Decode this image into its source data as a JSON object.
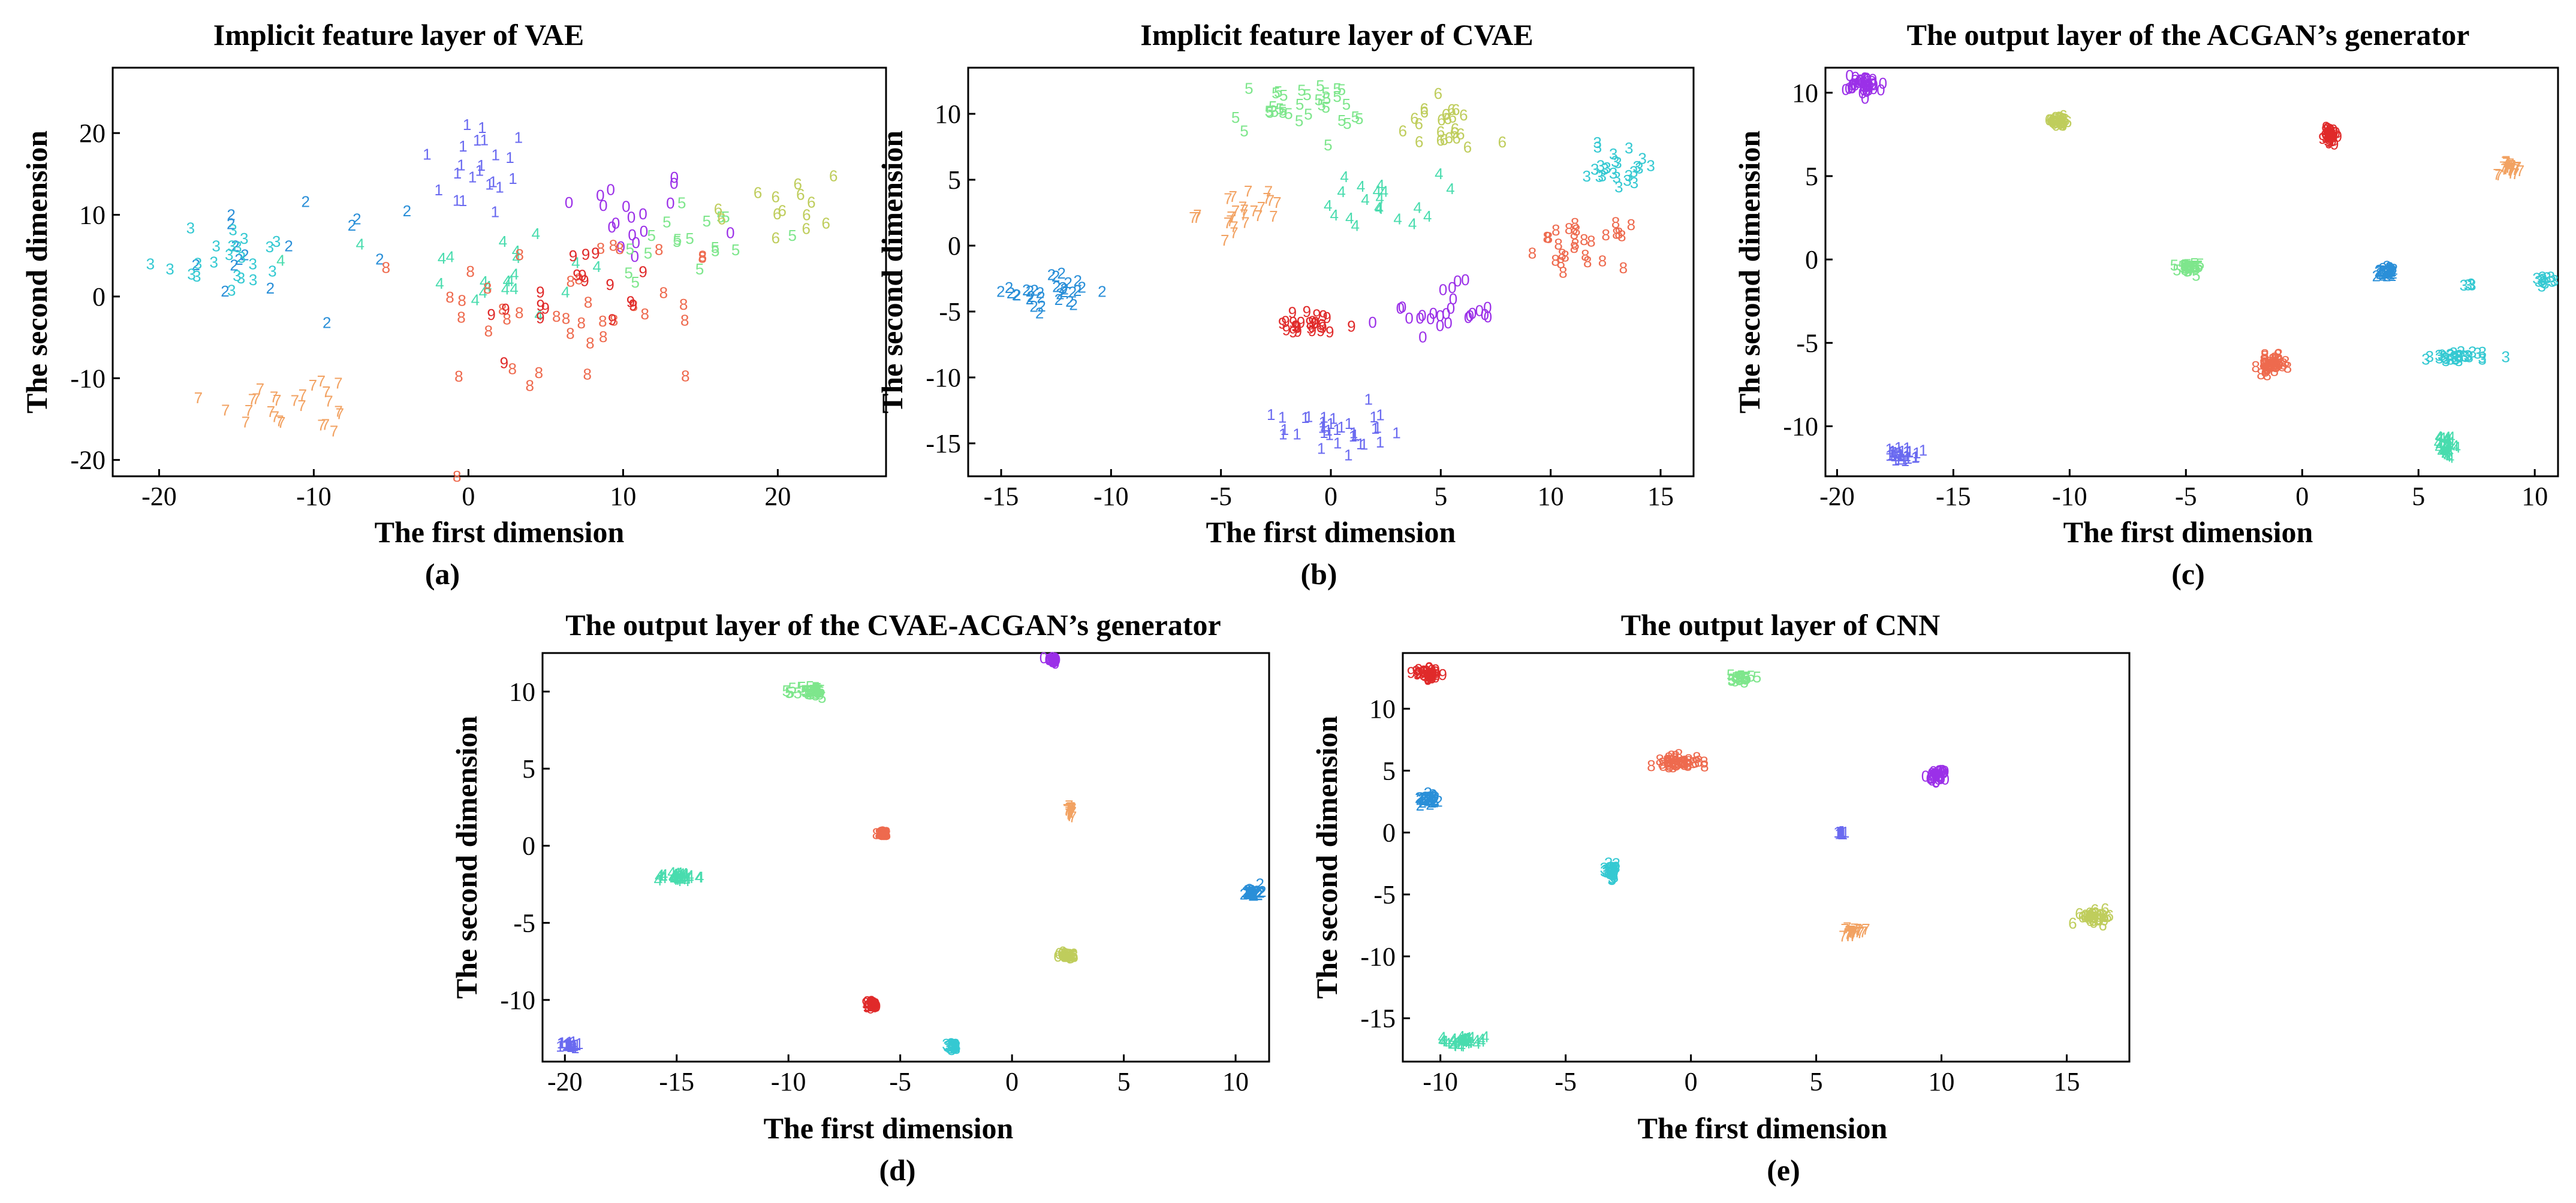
{
  "figure": {
    "description_free_note": "",
    "colors": {
      "0": "#9b30e8",
      "1": "#6a6af0",
      "2": "#2a8fd8",
      "3": "#35c9d2",
      "4": "#49dcae",
      "5": "#7ee68c",
      "6": "#bfcd5c",
      "7": "#f2a262",
      "8": "#ee6a4e",
      "9": "#e02a2a"
    }
  },
  "chart_data": [
    {
      "type": "scatter",
      "id": "a",
      "title": "Implicit feature layer of VAE",
      "xlabel": "The first dimension",
      "ylabel": "The second dimension",
      "caption": "(a)",
      "xlim": [
        -23,
        27
      ],
      "ylim": [
        -22,
        28
      ],
      "xticks": [
        -20,
        -10,
        0,
        10,
        20
      ],
      "yticks": [
        -20,
        -10,
        0,
        10,
        20
      ],
      "clusters": [
        {
          "label": "0",
          "cx": 10,
          "cy": 10,
          "sx": 5,
          "sy": 6,
          "n": 18
        },
        {
          "label": "1",
          "cx": 1,
          "cy": 16,
          "sx": 4,
          "sy": 7,
          "n": 22
        },
        {
          "label": "2",
          "cx": -10,
          "cy": 4,
          "sx": 8,
          "sy": 9,
          "n": 16
        },
        {
          "label": "3",
          "cx": -16,
          "cy": 5,
          "sx": 5,
          "sy": 5,
          "n": 22
        },
        {
          "label": "4",
          "cx": 2,
          "cy": 3,
          "sx": 7,
          "sy": 6,
          "n": 22
        },
        {
          "label": "5",
          "cx": 14,
          "cy": 7,
          "sx": 6,
          "sy": 6,
          "n": 18
        },
        {
          "label": "6",
          "cx": 20,
          "cy": 10,
          "sx": 5,
          "sy": 7,
          "n": 14
        },
        {
          "label": "7",
          "cx": -11,
          "cy": -13,
          "sx": 6,
          "sy": 4,
          "n": 26
        },
        {
          "label": "8",
          "cx": 7,
          "cy": -2,
          "sx": 10,
          "sy": 11,
          "n": 40
        },
        {
          "label": "9",
          "cx": 7,
          "cy": 0,
          "sx": 6,
          "sy": 7,
          "n": 18
        }
      ]
    },
    {
      "type": "scatter",
      "id": "b",
      "title": "Implicit feature layer of CVAE",
      "xlabel": "The first dimension",
      "ylabel": "The second dimension",
      "caption": "(b)",
      "xlim": [
        -16.5,
        16.5
      ],
      "ylim": [
        -17.5,
        13.5
      ],
      "xticks": [
        -15,
        -10,
        -5,
        0,
        5,
        10,
        15
      ],
      "yticks": [
        -15,
        -10,
        -5,
        0,
        5,
        10
      ],
      "clusters": [
        {
          "label": "0",
          "cx": 5,
          "cy": -5,
          "sx": 2.5,
          "sy": 2,
          "n": 26
        },
        {
          "label": "1",
          "cx": 0,
          "cy": -14,
          "sx": 2.5,
          "sy": 2,
          "n": 34
        },
        {
          "label": "2",
          "cx": -12.5,
          "cy": -3.5,
          "sx": 2,
          "sy": 1.4,
          "n": 32
        },
        {
          "label": "3",
          "cx": 13,
          "cy": 6,
          "sx": 2,
          "sy": 2,
          "n": 24
        },
        {
          "label": "4",
          "cx": 2.5,
          "cy": 3.5,
          "sx": 2.5,
          "sy": 2,
          "n": 20
        },
        {
          "label": "5",
          "cx": -1.5,
          "cy": 10.5,
          "sx": 3,
          "sy": 2,
          "n": 34
        },
        {
          "label": "6",
          "cx": 5,
          "cy": 9,
          "sx": 2,
          "sy": 2,
          "n": 24
        },
        {
          "label": "7",
          "cx": -4,
          "cy": 2.5,
          "sx": 2,
          "sy": 1.8,
          "n": 26
        },
        {
          "label": "8",
          "cx": 11.5,
          "cy": 0,
          "sx": 2,
          "sy": 1.6,
          "n": 28
        },
        {
          "label": "9",
          "cx": -1,
          "cy": -6,
          "sx": 2.2,
          "sy": 1,
          "n": 26
        }
      ]
    },
    {
      "type": "scatter",
      "id": "c",
      "title": "The output layer of the ACGAN’s  generator",
      "xlabel": "The first dimension",
      "ylabel": "The second dimension",
      "caption": "(c)",
      "xlim": [
        -20.5,
        11
      ],
      "ylim": [
        -13,
        11.5
      ],
      "xticks": [
        -20,
        -15,
        -10,
        -5,
        0,
        5,
        10
      ],
      "yticks": [
        -10,
        -5,
        0,
        5,
        10
      ],
      "clusters": [
        {
          "label": "0",
          "cx": -18.8,
          "cy": 10.5,
          "sx": 0.8,
          "sy": 0.6,
          "n": 40
        },
        {
          "label": "1",
          "cx": -17.2,
          "cy": -11.7,
          "sx": 0.6,
          "sy": 0.4,
          "n": 30
        },
        {
          "label": "2",
          "cx": 3.6,
          "cy": -0.7,
          "sx": 0.4,
          "sy": 0.3,
          "n": 30
        },
        {
          "label": "3",
          "cx": 6.8,
          "cy": -5.8,
          "sx": 1.3,
          "sy": 0.35,
          "n": 32
        },
        {
          "label": "3",
          "cx": 10.4,
          "cy": -1.2,
          "sx": 0.4,
          "sy": 0.2,
          "n": 12
        },
        {
          "label": "3",
          "cx": 7.2,
          "cy": -1.5,
          "sx": 0.2,
          "sy": 0.1,
          "n": 4
        },
        {
          "label": "4",
          "cx": 6.2,
          "cy": -11.2,
          "sx": 0.3,
          "sy": 0.7,
          "n": 32
        },
        {
          "label": "5",
          "cx": -4.9,
          "cy": -0.5,
          "sx": 0.5,
          "sy": 0.3,
          "n": 30
        },
        {
          "label": "6",
          "cx": -10.5,
          "cy": 8.3,
          "sx": 0.6,
          "sy": 0.3,
          "n": 30
        },
        {
          "label": "7",
          "cx": 8.9,
          "cy": 5.5,
          "sx": 0.5,
          "sy": 0.4,
          "n": 28
        },
        {
          "label": "8",
          "cx": -1.3,
          "cy": -6.3,
          "sx": 0.6,
          "sy": 0.5,
          "n": 38
        },
        {
          "label": "9",
          "cx": 1.2,
          "cy": 7.4,
          "sx": 0.3,
          "sy": 0.6,
          "n": 32
        }
      ]
    },
    {
      "type": "scatter",
      "id": "d",
      "title": "The output layer of the CVAE-ACGAN’s generator",
      "xlabel": "The first dimension",
      "ylabel": "The second dimension",
      "caption": "(d)",
      "xlim": [
        -21,
        11.5
      ],
      "ylim": [
        -14,
        12.5
      ],
      "xticks": [
        -20,
        -15,
        -10,
        -5,
        0,
        5,
        10
      ],
      "yticks": [
        -10,
        -5,
        0,
        5,
        10
      ],
      "clusters": [
        {
          "label": "0",
          "cx": 1.8,
          "cy": 12.1,
          "sx": 0.3,
          "sy": 0.2,
          "n": 24
        },
        {
          "label": "1",
          "cx": -19.8,
          "cy": -12.9,
          "sx": 0.4,
          "sy": 0.2,
          "n": 24
        },
        {
          "label": "2",
          "cx": 10.8,
          "cy": -3,
          "sx": 0.35,
          "sy": 0.3,
          "n": 30
        },
        {
          "label": "3",
          "cx": -2.6,
          "cy": -13,
          "sx": 0.3,
          "sy": 0.2,
          "n": 24
        },
        {
          "label": "4",
          "cx": -15,
          "cy": -2,
          "sx": 0.9,
          "sy": 0.3,
          "n": 36
        },
        {
          "label": "5",
          "cx": -9,
          "cy": 10,
          "sx": 0.7,
          "sy": 0.4,
          "n": 34
        },
        {
          "label": "6",
          "cx": 2.5,
          "cy": -7.1,
          "sx": 0.4,
          "sy": 0.2,
          "n": 26
        },
        {
          "label": "7",
          "cx": 2.6,
          "cy": 2.2,
          "sx": 0.2,
          "sy": 0.4,
          "n": 24
        },
        {
          "label": "8",
          "cx": -5.7,
          "cy": 0.8,
          "sx": 0.3,
          "sy": 0.1,
          "n": 24
        },
        {
          "label": "9",
          "cx": -6.3,
          "cy": -10.3,
          "sx": 0.3,
          "sy": 0.25,
          "n": 26
        }
      ]
    },
    {
      "type": "scatter",
      "id": "e",
      "title": "The output layer of  CNN",
      "xlabel": "The first dimension",
      "ylabel": "The second dimension",
      "caption": "(e)",
      "xlim": [
        -11.5,
        17.5
      ],
      "ylim": [
        -18.5,
        14.5
      ],
      "xticks": [
        -10,
        -5,
        0,
        5,
        10,
        15
      ],
      "yticks": [
        -15,
        -10,
        -5,
        0,
        5,
        10
      ],
      "clusters": [
        {
          "label": "0",
          "cx": 9.9,
          "cy": 4.6,
          "sx": 0.4,
          "sy": 0.5,
          "n": 30
        },
        {
          "label": "1",
          "cx": 6,
          "cy": 0,
          "sx": 0.2,
          "sy": 0.15,
          "n": 14
        },
        {
          "label": "2",
          "cx": -10.4,
          "cy": 2.8,
          "sx": 0.4,
          "sy": 0.5,
          "n": 30
        },
        {
          "label": "3",
          "cx": -3.2,
          "cy": -3.1,
          "sx": 0.3,
          "sy": 0.6,
          "n": 30
        },
        {
          "label": "4",
          "cx": -9.1,
          "cy": -16.8,
          "sx": 0.9,
          "sy": 0.4,
          "n": 36
        },
        {
          "label": "5",
          "cx": 2,
          "cy": 12.5,
          "sx": 0.4,
          "sy": 0.3,
          "n": 24
        },
        {
          "label": "6",
          "cx": 16.2,
          "cy": -6.8,
          "sx": 0.6,
          "sy": 0.5,
          "n": 36
        },
        {
          "label": "7",
          "cx": 6.5,
          "cy": -8,
          "sx": 0.5,
          "sy": 0.3,
          "n": 24
        },
        {
          "label": "8",
          "cx": -0.6,
          "cy": 5.7,
          "sx": 1,
          "sy": 0.5,
          "n": 40
        },
        {
          "label": "9",
          "cx": -10.5,
          "cy": 12.8,
          "sx": 0.6,
          "sy": 0.4,
          "n": 36
        }
      ]
    }
  ]
}
